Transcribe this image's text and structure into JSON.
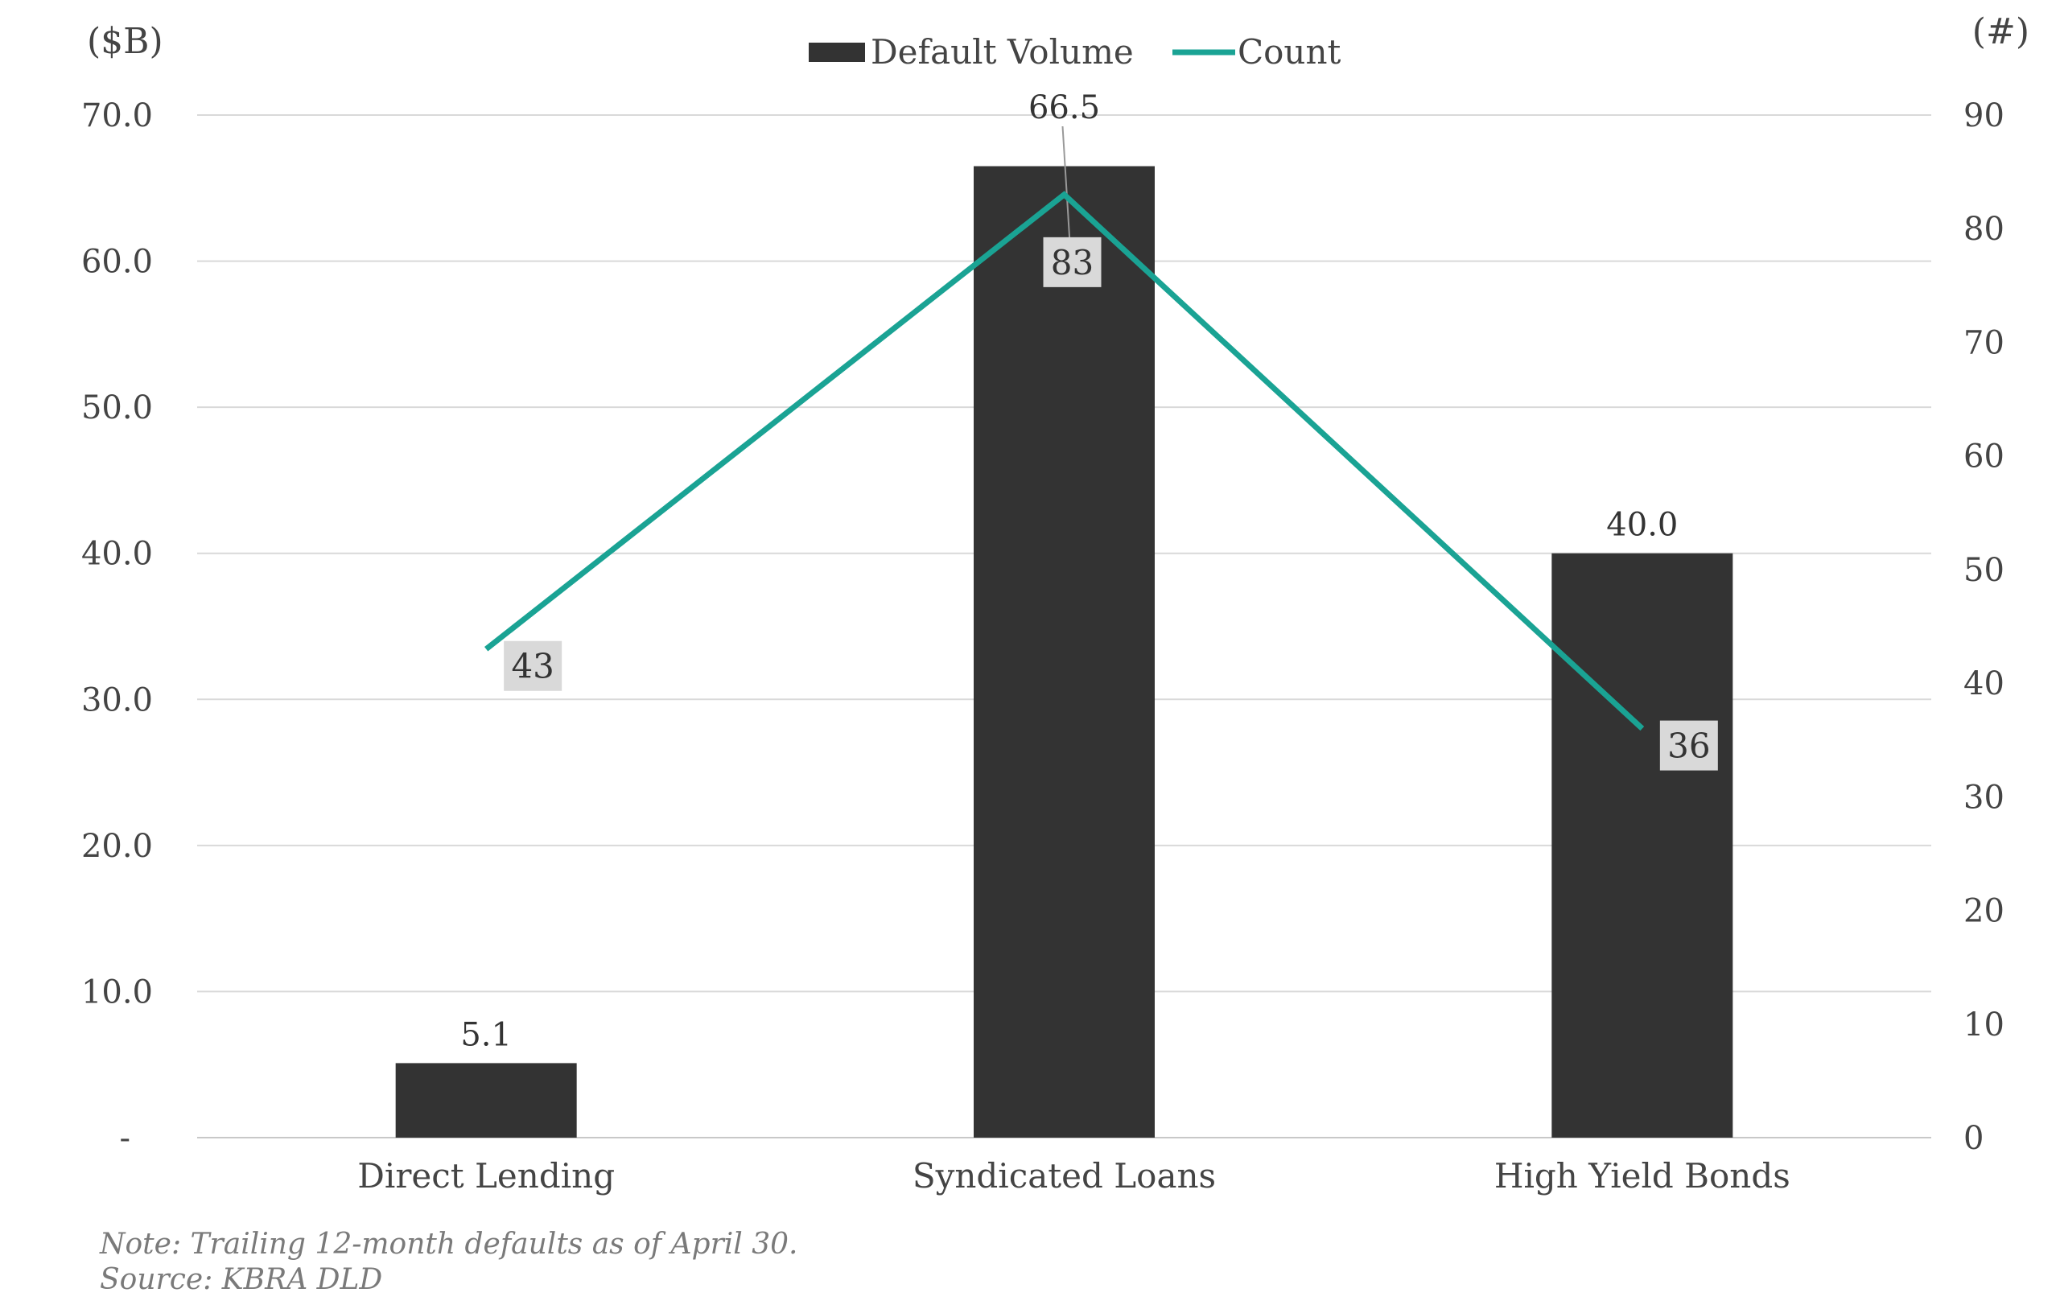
{
  "chart_data": {
    "type": "bar",
    "categories": [
      "Direct Lending",
      "Syndicated Loans",
      "High Yield Bonds"
    ],
    "series": [
      {
        "name": "Default Volume",
        "type": "bar",
        "axis": "left",
        "values": [
          5.1,
          66.5,
          40.0
        ],
        "labels": [
          "5.1",
          "66.5",
          "40.0"
        ]
      },
      {
        "name": "Count",
        "type": "line",
        "axis": "right",
        "values": [
          43,
          83,
          36
        ],
        "labels": [
          "43",
          "83",
          "36"
        ]
      }
    ],
    "y_left": {
      "unit": "($B)",
      "ylim": [
        0,
        70
      ],
      "ticks": [
        "-",
        "10.0",
        "20.0",
        "30.0",
        "40.0",
        "50.0",
        "60.0",
        "70.0"
      ]
    },
    "y_right": {
      "unit": "(#)",
      "ylim": [
        0,
        90
      ],
      "ticks": [
        "0",
        "10",
        "20",
        "30",
        "40",
        "50",
        "60",
        "70",
        "80",
        "90"
      ]
    },
    "legend": "top-center",
    "grid": true,
    "colors": {
      "bar": "#333333",
      "line": "#1aa394",
      "grid": "#d9d9d9",
      "label_box": "#d9d9d9"
    }
  },
  "notes": {
    "note": "Note: Trailing 12-month defaults as of April 30.",
    "source": "Source: KBRA DLD"
  }
}
